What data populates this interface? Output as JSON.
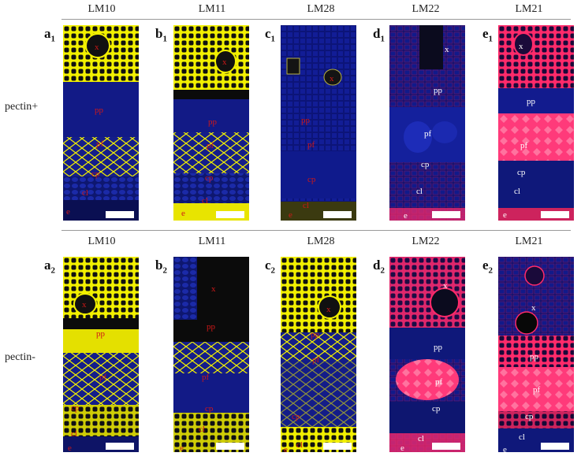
{
  "top_headers": [
    "LM10",
    "LM11",
    "LM28",
    "LM22",
    "LM21"
  ],
  "bottom_headers": [
    "LM10",
    "LM11",
    "LM28",
    "LM22",
    "LM21"
  ],
  "row_labels": {
    "top": "pectin+",
    "bottom": "pectin-"
  },
  "panel_letters": [
    "a",
    "b",
    "c",
    "d",
    "e"
  ],
  "row_subscripts": [
    "1",
    "2"
  ],
  "tissue_labels": [
    "x",
    "pp",
    "pf",
    "cp",
    "cl",
    "e"
  ],
  "colors": {
    "background": "#07072a",
    "blue_tissue": "#101b8c",
    "yellow_stain": "#f2f000",
    "red_stain": "#ff2a6a",
    "label_red": "#d01818",
    "label_white": "#ffffff",
    "scalebar": "#ffffff"
  }
}
